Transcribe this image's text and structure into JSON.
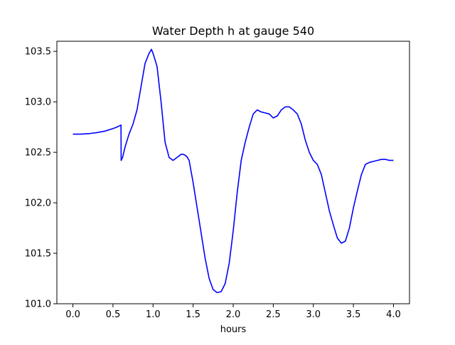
{
  "chart_data": {
    "type": "line",
    "title": "Water Depth h at gauge 540",
    "xlabel": "hours",
    "ylabel": "",
    "xlim": [
      -0.2,
      4.2
    ],
    "ylim": [
      101.0,
      103.6
    ],
    "xticks": [
      0.0,
      0.5,
      1.0,
      1.5,
      2.0,
      2.5,
      3.0,
      3.5,
      4.0
    ],
    "xtick_labels": [
      "0.0",
      "0.5",
      "1.0",
      "1.5",
      "2.0",
      "2.5",
      "3.0",
      "3.5",
      "4.0"
    ],
    "yticks": [
      101.0,
      101.5,
      102.0,
      102.5,
      103.0,
      103.5
    ],
    "ytick_labels": [
      "101.0",
      "101.5",
      "102.0",
      "102.5",
      "103.0",
      "103.5"
    ],
    "grid": false,
    "series": [
      {
        "name": "",
        "color": "#0000ff",
        "x": [
          0.0,
          0.1,
          0.2,
          0.3,
          0.4,
          0.5,
          0.55,
          0.6,
          0.602,
          0.62,
          0.65,
          0.7,
          0.75,
          0.8,
          0.85,
          0.9,
          0.95,
          0.98,
          1.0,
          1.05,
          1.1,
          1.15,
          1.2,
          1.25,
          1.3,
          1.35,
          1.38,
          1.42,
          1.45,
          1.5,
          1.55,
          1.6,
          1.65,
          1.7,
          1.75,
          1.8,
          1.85,
          1.9,
          1.95,
          2.0,
          2.05,
          2.1,
          2.15,
          2.2,
          2.25,
          2.3,
          2.35,
          2.4,
          2.45,
          2.5,
          2.55,
          2.6,
          2.65,
          2.7,
          2.75,
          2.8,
          2.85,
          2.9,
          2.95,
          3.0,
          3.05,
          3.1,
          3.15,
          3.2,
          3.25,
          3.3,
          3.35,
          3.4,
          3.45,
          3.5,
          3.55,
          3.6,
          3.65,
          3.7,
          3.75,
          3.8,
          3.85,
          3.9,
          3.95,
          4.0
        ],
        "y": [
          102.68,
          102.68,
          102.685,
          102.695,
          102.71,
          102.735,
          102.75,
          102.77,
          102.42,
          102.45,
          102.55,
          102.68,
          102.78,
          102.92,
          103.15,
          103.38,
          103.48,
          103.52,
          103.48,
          103.35,
          103.0,
          102.6,
          102.45,
          102.42,
          102.45,
          102.48,
          102.48,
          102.46,
          102.42,
          102.2,
          101.95,
          101.7,
          101.45,
          101.25,
          101.14,
          101.11,
          101.12,
          101.2,
          101.4,
          101.72,
          102.1,
          102.42,
          102.6,
          102.75,
          102.88,
          102.92,
          102.9,
          102.89,
          102.88,
          102.84,
          102.86,
          102.92,
          102.95,
          102.95,
          102.92,
          102.88,
          102.78,
          102.62,
          102.5,
          102.42,
          102.38,
          102.28,
          102.1,
          101.92,
          101.78,
          101.65,
          101.6,
          101.62,
          101.75,
          101.95,
          102.12,
          102.28,
          102.38,
          102.4,
          102.41,
          102.42,
          102.43,
          102.43,
          102.42,
          102.42
        ]
      }
    ]
  }
}
